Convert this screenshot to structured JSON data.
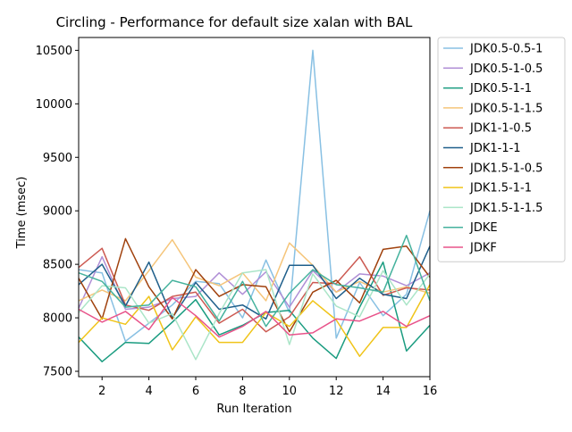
{
  "chart_data": {
    "type": "line",
    "title": "Circling - Performance for default size xalan with BAL",
    "xlabel": "Run Iteration",
    "ylabel": "Time (msec)",
    "xlim": [
      1,
      16
    ],
    "ylim": [
      7450,
      10620
    ],
    "x": [
      1,
      2,
      3,
      4,
      5,
      6,
      7,
      8,
      9,
      10,
      11,
      12,
      13,
      14,
      15,
      16
    ],
    "x_ticks": [
      2,
      4,
      6,
      8,
      10,
      12,
      14,
      16
    ],
    "y_ticks": [
      7500,
      8000,
      8500,
      9000,
      9500,
      10000,
      10500
    ],
    "grid": false,
    "legend_position": "outside-right",
    "series": [
      {
        "name": "JDK0.5-0.5-1",
        "color": "#88c0e3",
        "values": [
          8450,
          8420,
          7780,
          7950,
          8120,
          8340,
          8320,
          8000,
          8540,
          8050,
          10500,
          7810,
          8330,
          8020,
          8220,
          9000
        ]
      },
      {
        "name": "JDK0.5-1-0.5",
        "color": "#b08fd6",
        "values": [
          8090,
          8570,
          8080,
          8100,
          8180,
          8200,
          8420,
          8220,
          8430,
          8100,
          8440,
          8240,
          8410,
          8390,
          8300,
          8420
        ]
      },
      {
        "name": "JDK0.5-1-1",
        "color": "#1a9c80",
        "values": [
          7820,
          7590,
          7770,
          7760,
          7960,
          8170,
          7840,
          7930,
          8050,
          8070,
          7810,
          7620,
          8100,
          8520,
          7690,
          7930
        ]
      },
      {
        "name": "JDK0.5-1-1.5",
        "color": "#f5c57a",
        "values": [
          8160,
          8260,
          8160,
          8440,
          8730,
          8380,
          8300,
          8420,
          8160,
          8700,
          8490,
          8240,
          8340,
          8240,
          8290,
          8230
        ]
      },
      {
        "name": "JDK1-1-0.5",
        "color": "#cc5a52",
        "values": [
          8470,
          8650,
          8120,
          8070,
          8200,
          8240,
          7950,
          8080,
          7870,
          8010,
          8330,
          8320,
          8570,
          8210,
          8280,
          8260
        ]
      },
      {
        "name": "JDK1-1-1",
        "color": "#1f5f8b",
        "values": [
          8310,
          8500,
          8110,
          8520,
          8000,
          8330,
          8080,
          8120,
          7990,
          8490,
          8490,
          8180,
          8370,
          8220,
          8180,
          8670
        ]
      },
      {
        "name": "JDK1.5-1-0.5",
        "color": "#a0410d",
        "values": [
          8370,
          7990,
          8740,
          8290,
          7990,
          8450,
          8200,
          8310,
          8290,
          7870,
          8240,
          8350,
          8140,
          8640,
          8670,
          8380
        ]
      },
      {
        "name": "JDK1.5-1-1",
        "color": "#f0c419",
        "values": [
          7770,
          8000,
          7940,
          8200,
          7700,
          8010,
          7770,
          7770,
          8050,
          7920,
          8160,
          7980,
          7640,
          7910,
          7910,
          8310
        ]
      },
      {
        "name": "JDK1.5-1-1.5",
        "color": "#abe5c8",
        "values": [
          8050,
          8300,
          8280,
          7950,
          8040,
          7610,
          8040,
          8420,
          8450,
          7750,
          8410,
          8110,
          8010,
          8440,
          8120,
          8410
        ]
      },
      {
        "name": "JDKE",
        "color": "#45b29d",
        "values": [
          8420,
          8340,
          8100,
          8120,
          8350,
          8290,
          7970,
          8340,
          7920,
          8230,
          8450,
          8310,
          8280,
          8240,
          8770,
          8160
        ]
      },
      {
        "name": "JDKF",
        "color": "#e8538a",
        "values": [
          8080,
          7960,
          8060,
          7890,
          8190,
          8020,
          7820,
          7920,
          8060,
          7840,
          7860,
          7990,
          7970,
          8060,
          7920,
          8020
        ]
      }
    ]
  }
}
